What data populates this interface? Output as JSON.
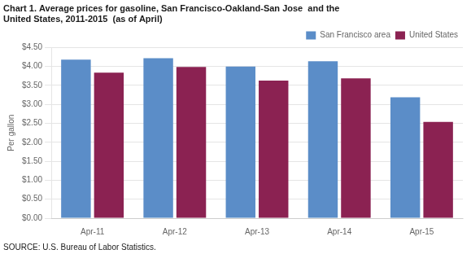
{
  "chart_data": {
    "type": "bar",
    "title": [
      "Chart 1. Average prices for gasoline, San Francisco-Oakland-San Jose  and the",
      "United States, 2011-2015  (as of April)"
    ],
    "ylabel": "Per gallon",
    "source": "SOURCE: U.S. Bureau of Labor Statistics.",
    "categories": [
      "Apr-11",
      "Apr-12",
      "Apr-13",
      "Apr-14",
      "Apr-15"
    ],
    "series": [
      {
        "name": "San Francisco area",
        "color": "#5B8DC8",
        "values": [
          4.18,
          4.22,
          4.0,
          4.14,
          3.19
        ]
      },
      {
        "name": "United States",
        "color": "#8B2252",
        "values": [
          3.84,
          3.99,
          3.63,
          3.69,
          2.54
        ]
      }
    ],
    "ylim": [
      0,
      4.5
    ],
    "yticks": [
      {
        "value": 0,
        "label": "$0.00"
      },
      {
        "value": 0.5,
        "label": "$0.50"
      },
      {
        "value": 1,
        "label": "$1.00"
      },
      {
        "value": 1.5,
        "label": "$1.50"
      },
      {
        "value": 2,
        "label": "$2.00"
      },
      {
        "value": 2.5,
        "label": "$2.50"
      },
      {
        "value": 3,
        "label": "$3.00"
      },
      {
        "value": 3.5,
        "label": "$3.50"
      },
      {
        "value": 4,
        "label": "$4.00"
      },
      {
        "value": 4.5,
        "label": "$4.50"
      }
    ],
    "grid": true,
    "legend": "top-right"
  }
}
